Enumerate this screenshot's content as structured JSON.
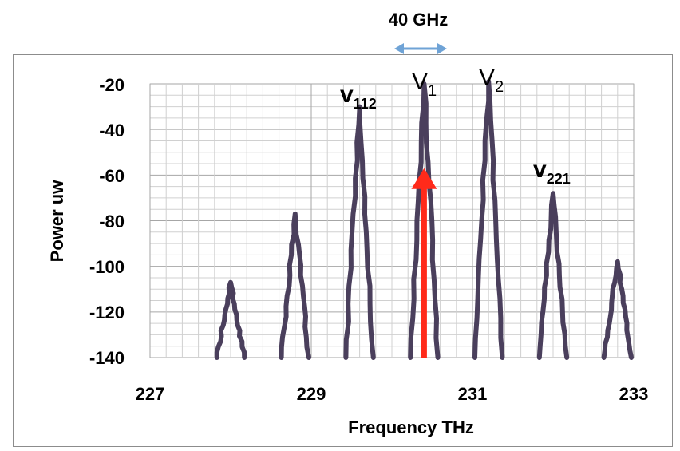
{
  "chart_data": {
    "type": "line",
    "title": "",
    "xlabel": "Frequency THz",
    "ylabel": "Power uw",
    "xlim": [
      227,
      233
    ],
    "ylim": [
      -140,
      -20
    ],
    "xticks": [
      "227",
      "229",
      "231",
      "233"
    ],
    "yticks": [
      "-20",
      "-40",
      "-60",
      "-80",
      "-100",
      "-120",
      "-140"
    ],
    "grid": true,
    "series": [
      {
        "color": "#4a3f5c",
        "peaks": [
          {
            "x": 228.0,
            "y": -107
          },
          {
            "x": 228.8,
            "y": -77
          },
          {
            "x": 229.6,
            "y": -30
          },
          {
            "x": 230.4,
            "y": -20
          },
          {
            "x": 231.2,
            "y": -19
          },
          {
            "x": 232.0,
            "y": -68
          },
          {
            "x": 232.8,
            "y": -98
          }
        ]
      }
    ],
    "annotations": {
      "spacing_label": "40 GHz",
      "v1": {
        "base": "V",
        "sub": "1"
      },
      "v2": {
        "base": "V",
        "sub": "2"
      },
      "v112": {
        "base": "v",
        "sub": "112"
      },
      "v221": {
        "base": "v",
        "sub": "221"
      }
    },
    "arrow": {
      "x": 230.4,
      "y_from": -140,
      "y_to": -57,
      "color": "#ff2a1a"
    },
    "spacing_arrow_color": "#6fa3d6"
  }
}
